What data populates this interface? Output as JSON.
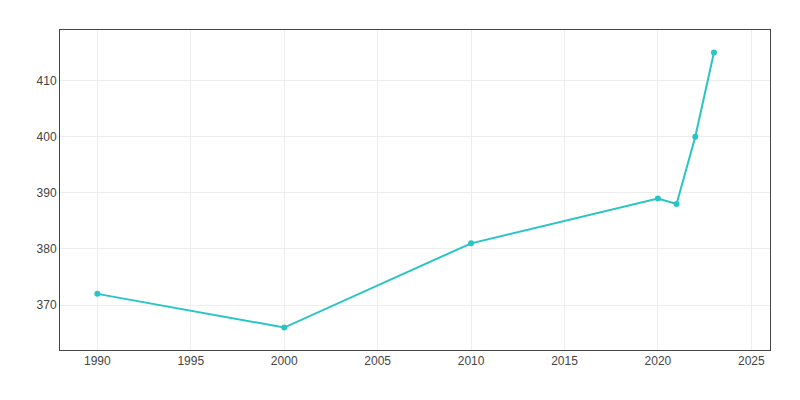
{
  "chart_data": {
    "type": "line",
    "x": [
      1990,
      2000,
      2010,
      2020,
      2021,
      2022,
      2023
    ],
    "values": [
      372,
      366,
      381,
      389,
      388,
      400,
      415
    ],
    "color": "#29c4c4",
    "marker": "circle",
    "xlim": [
      1988,
      2026
    ],
    "ylim": [
      362,
      419
    ],
    "xticks": [
      1990,
      1995,
      2000,
      2005,
      2010,
      2015,
      2020,
      2025
    ],
    "yticks": [
      370,
      380,
      390,
      400,
      410
    ],
    "grid": true
  }
}
